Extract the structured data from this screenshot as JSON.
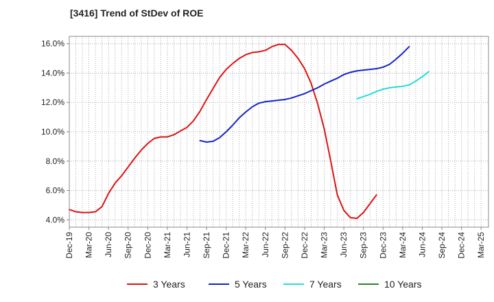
{
  "chart_data": {
    "type": "line",
    "title": "[3416]  Trend of StDev of ROE",
    "xlabel": "",
    "ylabel": "",
    "x_tick_labels": [
      "Dec-19",
      "Mar-20",
      "Jun-20",
      "Sep-20",
      "Dec-20",
      "Mar-21",
      "Jun-21",
      "Sep-21",
      "Dec-21",
      "Mar-22",
      "Jun-22",
      "Sep-22",
      "Dec-22",
      "Mar-23",
      "Jun-23",
      "Sep-23",
      "Dec-23",
      "Mar-24",
      "Jun-24",
      "Sep-24",
      "Dec-24",
      "Mar-25"
    ],
    "y_tick_labels": [
      "4.0%",
      "6.0%",
      "8.0%",
      "10.0%",
      "12.0%",
      "14.0%",
      "16.0%"
    ],
    "ylim": [
      3.5,
      16.5
    ],
    "grid": true,
    "grid_style": "dotted",
    "legend_position": "bottom",
    "series": [
      {
        "name": "3 Years",
        "color": "#dd1111",
        "values": [
          4.7,
          4.55,
          4.5,
          4.5,
          4.55,
          4.9,
          5.8,
          6.5,
          7.0,
          7.6,
          8.2,
          8.75,
          9.2,
          9.55,
          9.65,
          9.65,
          9.8,
          10.05,
          10.3,
          10.75,
          11.4,
          12.2,
          12.95,
          13.7,
          14.25,
          14.65,
          15.0,
          15.25,
          15.4,
          15.45,
          15.55,
          15.8,
          15.95,
          15.95,
          15.55,
          15.0,
          14.3,
          13.3,
          11.9,
          10.2,
          8.0,
          5.7,
          4.65,
          4.15,
          4.1,
          4.5,
          5.1,
          5.7
        ]
      },
      {
        "name": "5 Years",
        "color": "#1122cc",
        "values": [
          null,
          null,
          null,
          null,
          null,
          null,
          null,
          null,
          null,
          null,
          null,
          null,
          null,
          null,
          null,
          null,
          null,
          null,
          null,
          null,
          9.4,
          9.3,
          9.35,
          9.6,
          10.0,
          10.45,
          10.95,
          11.35,
          11.7,
          11.95,
          12.05,
          12.1,
          12.15,
          12.2,
          12.3,
          12.45,
          12.6,
          12.8,
          13.0,
          13.25,
          13.45,
          13.65,
          13.9,
          14.05,
          14.15,
          14.2,
          14.25,
          14.3,
          14.4,
          14.6,
          14.95,
          15.35,
          15.8
        ]
      },
      {
        "name": "7 Years",
        "color": "#22dddd",
        "values": [
          null,
          null,
          null,
          null,
          null,
          null,
          null,
          null,
          null,
          null,
          null,
          null,
          null,
          null,
          null,
          null,
          null,
          null,
          null,
          null,
          null,
          null,
          null,
          null,
          null,
          null,
          null,
          null,
          null,
          null,
          null,
          null,
          null,
          null,
          null,
          null,
          null,
          null,
          null,
          null,
          null,
          null,
          null,
          null,
          12.25,
          12.4,
          12.55,
          12.75,
          12.9,
          13.0,
          13.05,
          13.1,
          13.2,
          13.45,
          13.75,
          14.1
        ]
      },
      {
        "name": "10 Years",
        "color": "#228822",
        "values": []
      }
    ]
  }
}
